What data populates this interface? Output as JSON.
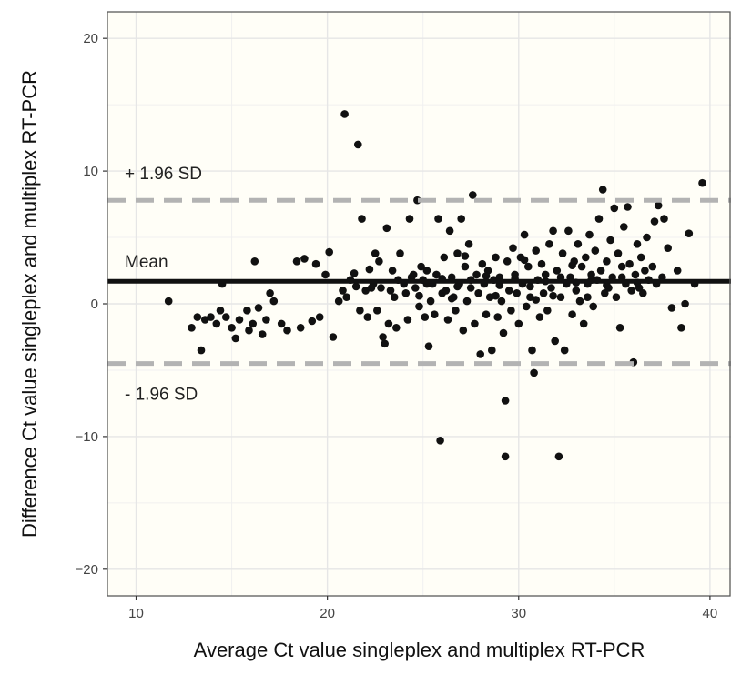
{
  "chart_data": {
    "type": "scatter",
    "title": "",
    "xlabel": "Average Ct value singleplex and multiplex RT-PCR",
    "ylabel": "Difference Ct value singleplex and multiplex RT-PCR",
    "xlim": [
      8.5,
      41.1
    ],
    "ylim": [
      -22,
      22
    ],
    "xticks": [
      10,
      20,
      30,
      40
    ],
    "yticks": [
      20,
      10,
      0,
      -10,
      -20
    ],
    "xtick_labels": [
      "10",
      "20",
      "30",
      "40"
    ],
    "ytick_labels": [
      "20",
      "10",
      "0",
      "−10",
      "−20"
    ],
    "grid": true,
    "reference_lines": [
      {
        "name": "upper_loa",
        "label": "+ 1.96 SD",
        "y": 7.8,
        "style": "dashed",
        "color": "#b3b3b3"
      },
      {
        "name": "mean",
        "label": "Mean",
        "y": 1.7,
        "style": "solid",
        "color": "#111111"
      },
      {
        "name": "lower_loa",
        "label": "- 1.96 SD",
        "y": -4.5,
        "style": "dashed",
        "color": "#b3b3b3"
      }
    ],
    "colors": {
      "panel_bg": "#fffef7",
      "grid": "#e6e6e6",
      "points": "#111111",
      "border": "#5a5a5a"
    },
    "points": [
      [
        11.7,
        0.2
      ],
      [
        12.9,
        -1.8
      ],
      [
        13.2,
        -1.0
      ],
      [
        13.4,
        -3.5
      ],
      [
        13.6,
        -1.2
      ],
      [
        13.9,
        -1.0
      ],
      [
        14.2,
        -1.5
      ],
      [
        14.4,
        -0.5
      ],
      [
        14.5,
        1.5
      ],
      [
        14.7,
        -1.0
      ],
      [
        15.0,
        -1.8
      ],
      [
        15.2,
        -2.6
      ],
      [
        15.4,
        -1.2
      ],
      [
        15.8,
        -0.5
      ],
      [
        15.9,
        -2.0
      ],
      [
        16.1,
        -1.5
      ],
      [
        16.2,
        3.2
      ],
      [
        16.4,
        -0.3
      ],
      [
        16.6,
        -2.3
      ],
      [
        16.8,
        -1.2
      ],
      [
        17.0,
        0.8
      ],
      [
        17.2,
        0.2
      ],
      [
        17.6,
        -1.5
      ],
      [
        17.9,
        -2.0
      ],
      [
        18.4,
        3.2
      ],
      [
        18.6,
        -1.8
      ],
      [
        18.8,
        3.4
      ],
      [
        19.2,
        -1.3
      ],
      [
        19.4,
        3.0
      ],
      [
        19.6,
        -1.0
      ],
      [
        19.9,
        2.2
      ],
      [
        20.1,
        3.9
      ],
      [
        20.3,
        -2.5
      ],
      [
        20.6,
        0.2
      ],
      [
        20.8,
        1.0
      ],
      [
        20.9,
        14.3
      ],
      [
        21.0,
        0.5
      ],
      [
        21.2,
        1.8
      ],
      [
        21.4,
        2.3
      ],
      [
        21.6,
        12.0
      ],
      [
        21.7,
        -0.5
      ],
      [
        21.8,
        6.4
      ],
      [
        22.0,
        1.0
      ],
      [
        22.1,
        -1.0
      ],
      [
        22.2,
        2.6
      ],
      [
        22.4,
        1.5
      ],
      [
        22.5,
        3.8
      ],
      [
        22.6,
        -0.5
      ],
      [
        22.7,
        3.2
      ],
      [
        22.8,
        1.2
      ],
      [
        22.9,
        -2.5
      ],
      [
        23.0,
        -3.0
      ],
      [
        23.1,
        5.7
      ],
      [
        23.2,
        -1.5
      ],
      [
        23.3,
        1.0
      ],
      [
        23.4,
        2.5
      ],
      [
        23.5,
        0.5
      ],
      [
        23.6,
        -1.8
      ],
      [
        23.8,
        3.8
      ],
      [
        24.0,
        1.5
      ],
      [
        24.1,
        0.8
      ],
      [
        24.2,
        -1.2
      ],
      [
        24.3,
        6.4
      ],
      [
        24.4,
        2.0
      ],
      [
        24.6,
        1.2
      ],
      [
        24.7,
        7.8
      ],
      [
        24.8,
        -0.2
      ],
      [
        24.9,
        2.8
      ],
      [
        25.0,
        1.8
      ],
      [
        25.1,
        -1.0
      ],
      [
        25.2,
        2.5
      ],
      [
        25.3,
        -3.2
      ],
      [
        25.4,
        0.2
      ],
      [
        25.5,
        1.5
      ],
      [
        25.6,
        -0.8
      ],
      [
        25.7,
        2.2
      ],
      [
        25.8,
        6.4
      ],
      [
        25.9,
        -10.3
      ],
      [
        26.0,
        0.8
      ],
      [
        26.1,
        3.5
      ],
      [
        26.2,
        1.0
      ],
      [
        26.3,
        -1.2
      ],
      [
        26.4,
        5.5
      ],
      [
        26.5,
        2.0
      ],
      [
        26.6,
        0.5
      ],
      [
        26.7,
        -0.5
      ],
      [
        26.8,
        3.8
      ],
      [
        26.9,
        1.5
      ],
      [
        27.0,
        6.4
      ],
      [
        27.1,
        -2.0
      ],
      [
        27.2,
        2.8
      ],
      [
        27.3,
        0.2
      ],
      [
        27.4,
        4.5
      ],
      [
        27.5,
        1.2
      ],
      [
        27.6,
        8.2
      ],
      [
        27.7,
        -1.5
      ],
      [
        27.8,
        2.2
      ],
      [
        27.9,
        0.8
      ],
      [
        28.0,
        -3.8
      ],
      [
        28.1,
        3.0
      ],
      [
        28.2,
        1.5
      ],
      [
        28.3,
        -0.8
      ],
      [
        28.4,
        2.5
      ],
      [
        28.5,
        0.5
      ],
      [
        28.6,
        -3.5
      ],
      [
        28.7,
        1.8
      ],
      [
        28.8,
        3.5
      ],
      [
        28.9,
        -1.0
      ],
      [
        29.0,
        2.0
      ],
      [
        29.1,
        0.2
      ],
      [
        29.2,
        -2.2
      ],
      [
        29.3,
        -7.3
      ],
      [
        29.3,
        -11.5
      ],
      [
        29.4,
        3.2
      ],
      [
        29.5,
        1.0
      ],
      [
        29.6,
        -0.5
      ],
      [
        29.7,
        4.2
      ],
      [
        29.8,
        2.2
      ],
      [
        29.9,
        0.8
      ],
      [
        30.0,
        -1.5
      ],
      [
        30.1,
        3.5
      ],
      [
        30.2,
        1.5
      ],
      [
        30.3,
        5.2
      ],
      [
        30.4,
        -0.2
      ],
      [
        30.5,
        2.8
      ],
      [
        30.6,
        0.5
      ],
      [
        30.7,
        -3.5
      ],
      [
        30.8,
        -5.2
      ],
      [
        30.9,
        4.0
      ],
      [
        31.0,
        1.8
      ],
      [
        31.1,
        -1.0
      ],
      [
        31.2,
        3.0
      ],
      [
        31.3,
        0.8
      ],
      [
        31.4,
        2.2
      ],
      [
        31.5,
        -0.5
      ],
      [
        31.6,
        4.5
      ],
      [
        31.7,
        1.2
      ],
      [
        31.8,
        5.5
      ],
      [
        31.9,
        -2.8
      ],
      [
        32.0,
        2.5
      ],
      [
        32.1,
        -11.5
      ],
      [
        32.2,
        0.5
      ],
      [
        32.3,
        3.8
      ],
      [
        32.4,
        -3.5
      ],
      [
        32.5,
        1.5
      ],
      [
        32.6,
        5.5
      ],
      [
        32.7,
        2.0
      ],
      [
        32.8,
        -0.8
      ],
      [
        32.9,
        3.2
      ],
      [
        33.0,
        1.0
      ],
      [
        33.1,
        4.5
      ],
      [
        33.2,
        0.2
      ],
      [
        33.3,
        2.8
      ],
      [
        33.4,
        -1.5
      ],
      [
        33.5,
        3.5
      ],
      [
        33.6,
        1.5
      ],
      [
        33.7,
        5.2
      ],
      [
        33.8,
        2.2
      ],
      [
        33.9,
        -0.2
      ],
      [
        34.0,
        4.0
      ],
      [
        34.1,
        1.8
      ],
      [
        34.2,
        6.4
      ],
      [
        34.3,
        2.5
      ],
      [
        34.4,
        8.6
      ],
      [
        34.5,
        0.8
      ],
      [
        34.6,
        3.2
      ],
      [
        34.7,
        1.2
      ],
      [
        34.8,
        4.8
      ],
      [
        34.9,
        2.0
      ],
      [
        35.0,
        7.2
      ],
      [
        35.1,
        0.5
      ],
      [
        35.2,
        3.8
      ],
      [
        35.3,
        -1.8
      ],
      [
        35.4,
        2.8
      ],
      [
        35.5,
        5.8
      ],
      [
        35.6,
        1.5
      ],
      [
        35.7,
        7.3
      ],
      [
        35.8,
        3.0
      ],
      [
        35.9,
        1.0
      ],
      [
        36.0,
        -4.4
      ],
      [
        36.1,
        2.2
      ],
      [
        36.2,
        4.5
      ],
      [
        36.3,
        1.2
      ],
      [
        36.4,
        3.5
      ],
      [
        36.5,
        0.8
      ],
      [
        36.6,
        2.5
      ],
      [
        36.7,
        5.0
      ],
      [
        36.8,
        1.8
      ],
      [
        37.0,
        2.8
      ],
      [
        37.1,
        6.2
      ],
      [
        37.2,
        1.5
      ],
      [
        37.3,
        7.4
      ],
      [
        37.5,
        2.0
      ],
      [
        37.6,
        6.4
      ],
      [
        37.8,
        4.2
      ],
      [
        38.0,
        -0.3
      ],
      [
        38.3,
        2.5
      ],
      [
        38.5,
        -1.8
      ],
      [
        38.7,
        0.0
      ],
      [
        38.9,
        5.3
      ],
      [
        39.2,
        1.5
      ],
      [
        39.6,
        9.1
      ],
      [
        22.3,
        1.2
      ],
      [
        23.7,
        1.8
      ],
      [
        24.5,
        2.2
      ],
      [
        25.2,
        1.5
      ],
      [
        26.0,
        1.9
      ],
      [
        26.8,
        1.3
      ],
      [
        27.5,
        1.8
      ],
      [
        28.3,
        2.1
      ],
      [
        29.0,
        1.4
      ],
      [
        29.8,
        1.9
      ],
      [
        30.6,
        1.3
      ],
      [
        31.4,
        1.7
      ],
      [
        32.2,
        2.0
      ],
      [
        33.0,
        1.6
      ],
      [
        33.8,
        1.8
      ],
      [
        34.6,
        1.4
      ],
      [
        35.4,
        2.0
      ],
      [
        36.2,
        1.6
      ],
      [
        21.5,
        1.3
      ],
      [
        24.8,
        0.6
      ],
      [
        26.5,
        0.4
      ],
      [
        28.8,
        0.6
      ],
      [
        30.9,
        0.3
      ],
      [
        31.8,
        0.6
      ],
      [
        33.6,
        0.5
      ],
      [
        27.2,
        3.6
      ],
      [
        30.3,
        3.3
      ],
      [
        32.8,
        2.9
      ]
    ]
  }
}
